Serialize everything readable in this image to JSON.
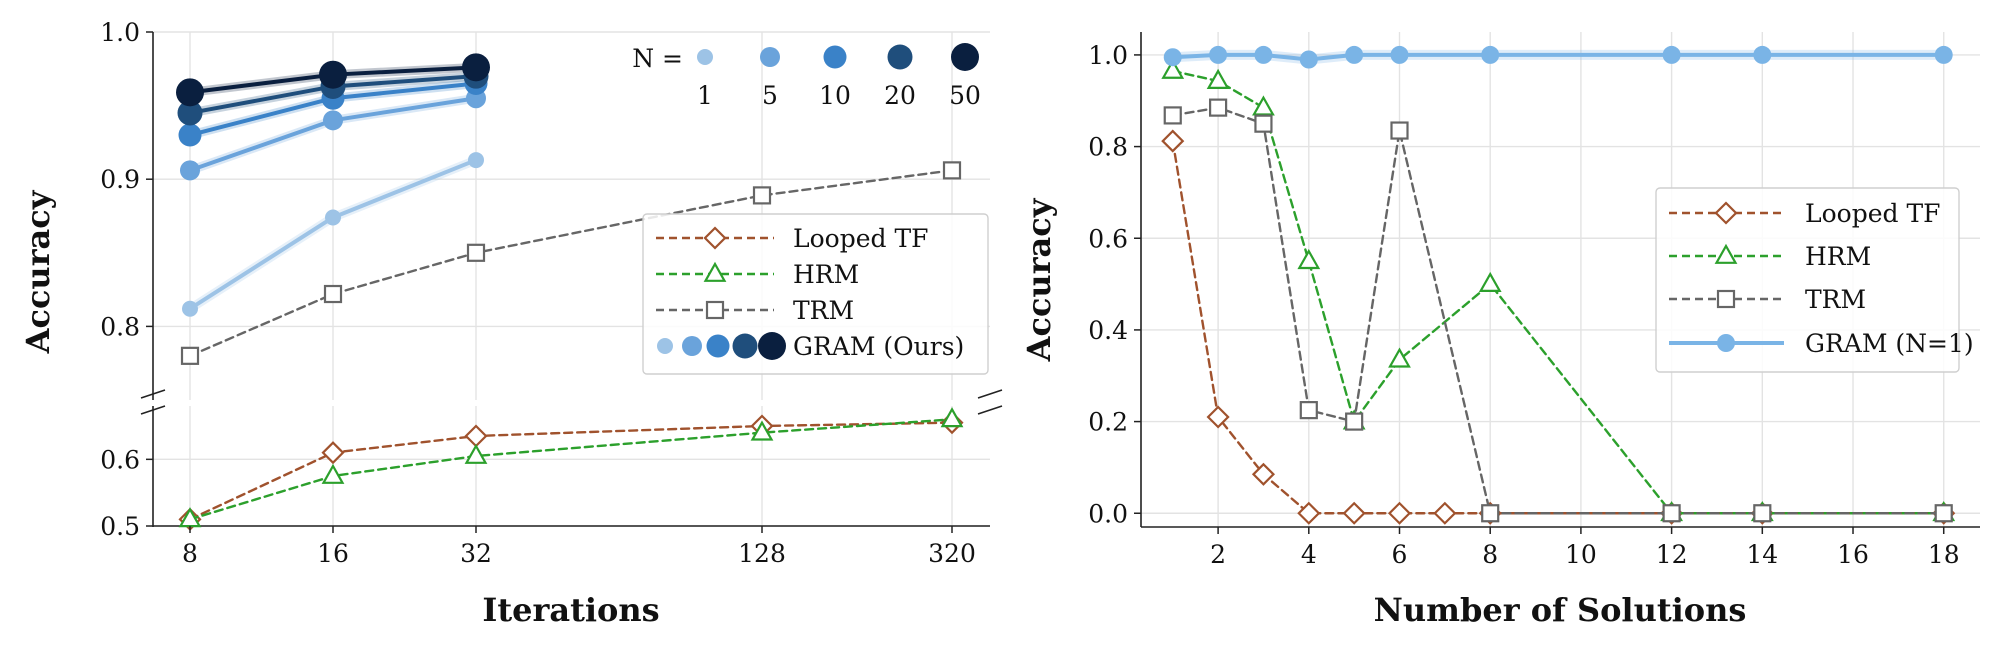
{
  "chart_data": [
    {
      "type": "line",
      "xlabel": "Iterations",
      "ylabel": "Accuracy",
      "x_ticks": [
        "8",
        "16",
        "32",
        "128",
        "320"
      ],
      "y_ticks_upper": [
        "1.0",
        "0.9",
        "0.8"
      ],
      "y_ticks_lower": [
        "0.6",
        "0.5"
      ],
      "ylim_upper": [
        0.75,
        1.0
      ],
      "ylim_lower": [
        0.5,
        0.68
      ],
      "broken_y_axis": true,
      "grid": true,
      "legend": {
        "placement": "center-right",
        "entries": [
          "Looped TF",
          "HRM",
          "TRM",
          "GRAM (Ours)"
        ]
      },
      "n_legend": {
        "placement": "top-right",
        "title": "N =",
        "values": [
          "1",
          "5",
          "10",
          "20",
          "50"
        ]
      },
      "series": [
        {
          "name": "Looped TF",
          "marker": "diamond",
          "color": "#a0522d",
          "x": [
            8,
            16,
            32,
            128,
            320
          ],
          "y": [
            0.51,
            0.61,
            0.635,
            0.65,
            0.655
          ]
        },
        {
          "name": "HRM",
          "marker": "triangle",
          "color": "#2ca02c",
          "x": [
            8,
            16,
            32,
            128,
            320
          ],
          "y": [
            0.51,
            0.575,
            0.605,
            0.64,
            0.66
          ]
        },
        {
          "name": "TRM",
          "marker": "square",
          "color": "#666666",
          "x": [
            8,
            16,
            32,
            128,
            320
          ],
          "y": [
            0.78,
            0.822,
            0.85,
            0.889,
            0.906
          ]
        },
        {
          "name": "GRAM N=1",
          "color": "#9dc3e6",
          "x": [
            8,
            16,
            32
          ],
          "y": [
            0.812,
            0.874,
            0.913
          ]
        },
        {
          "name": "GRAM N=5",
          "color": "#6aa3db",
          "x": [
            8,
            16,
            32
          ],
          "y": [
            0.906,
            0.94,
            0.955
          ]
        },
        {
          "name": "GRAM N=10",
          "color": "#3a82c8",
          "x": [
            8,
            16,
            32
          ],
          "y": [
            0.93,
            0.955,
            0.965
          ]
        },
        {
          "name": "GRAM N=20",
          "color": "#1f4e7c",
          "x": [
            8,
            16,
            32
          ],
          "y": [
            0.945,
            0.963,
            0.97
          ]
        },
        {
          "name": "GRAM N=50",
          "color": "#0a1f3f",
          "x": [
            8,
            16,
            32
          ],
          "y": [
            0.959,
            0.971,
            0.976
          ]
        }
      ]
    },
    {
      "type": "line",
      "xlabel": "Number of Solutions",
      "ylabel": "Accuracy",
      "x_ticks": [
        "2",
        "4",
        "6",
        "8",
        "10",
        "12",
        "14",
        "16",
        "18"
      ],
      "y_ticks": [
        "0.0",
        "0.2",
        "0.4",
        "0.6",
        "0.8",
        "1.0"
      ],
      "xlim": [
        0.3,
        18.8
      ],
      "ylim": [
        -0.03,
        1.05
      ],
      "grid": true,
      "legend": {
        "placement": "center-right",
        "entries": [
          "Looped TF",
          "HRM",
          "TRM",
          "GRAM (N=1)"
        ]
      },
      "series": [
        {
          "name": "Looped TF",
          "marker": "diamond",
          "color": "#a0522d",
          "x": [
            1,
            2,
            3,
            4,
            5,
            6,
            7,
            8,
            12,
            14,
            18
          ],
          "y": [
            0.812,
            0.21,
            0.085,
            0.0,
            0.0,
            0.0,
            0.0,
            0.0,
            0.0,
            0.0,
            0.0
          ]
        },
        {
          "name": "HRM",
          "marker": "triangle",
          "color": "#2ca02c",
          "x": [
            1,
            2,
            3,
            4,
            5,
            6,
            8,
            12,
            14,
            18
          ],
          "y": [
            0.965,
            0.943,
            0.885,
            0.55,
            0.2,
            0.335,
            0.5,
            0.0,
            0.0,
            0.0
          ]
        },
        {
          "name": "TRM",
          "marker": "square",
          "color": "#666666",
          "x": [
            1,
            2,
            3,
            4,
            5,
            6,
            8,
            12,
            14,
            18
          ],
          "y": [
            0.868,
            0.885,
            0.85,
            0.225,
            0.2,
            0.835,
            0.0,
            0.0,
            0.0,
            0.0
          ]
        },
        {
          "name": "GRAM (N=1)",
          "marker": "circle",
          "color": "#7ab4e6",
          "x": [
            1,
            2,
            3,
            4,
            5,
            6,
            8,
            12,
            14,
            18
          ],
          "y": [
            0.995,
            1.0,
            1.0,
            0.99,
            1.0,
            1.0,
            1.0,
            1.0,
            1.0,
            1.0
          ]
        }
      ]
    }
  ]
}
